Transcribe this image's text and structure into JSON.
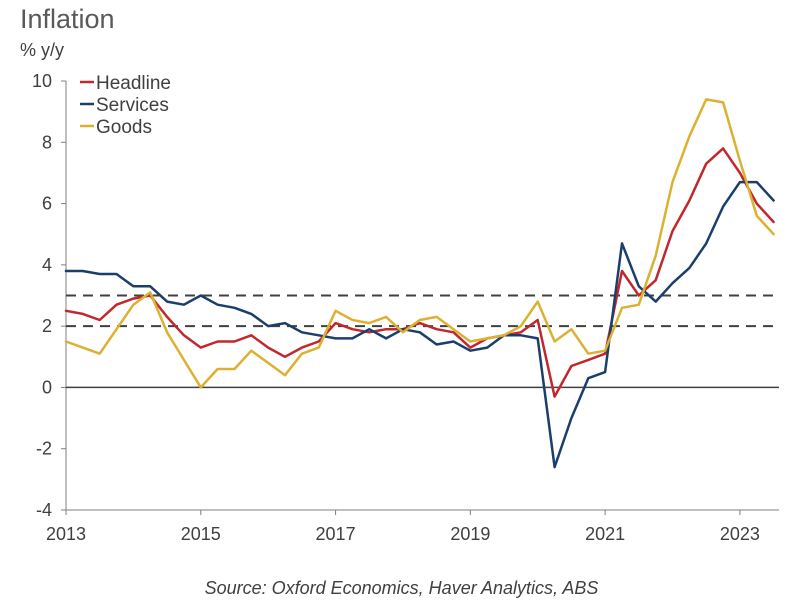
{
  "title": "Inflation",
  "unit_label": "% y/y",
  "source": "Source: Oxford Economics, Haver Analytics, ABS",
  "chart_data": {
    "type": "line",
    "title": "Inflation",
    "ylabel": "% y/y",
    "xlim": [
      2013.0,
      2023.58
    ],
    "ylim": [
      -4,
      10
    ],
    "yticks": [
      -4,
      -2,
      0,
      2,
      4,
      6,
      8,
      10
    ],
    "xticks": [
      2013,
      2015,
      2017,
      2019,
      2021,
      2023
    ],
    "reference_lines": [
      {
        "y": 2,
        "style": "dashed",
        "color": "#404040"
      },
      {
        "y": 3,
        "style": "dashed",
        "color": "#404040"
      },
      {
        "y": 0,
        "style": "solid",
        "color": "#404040"
      }
    ],
    "legend_position": "top-left",
    "x": [
      2013.0,
      2013.25,
      2013.5,
      2013.75,
      2014.0,
      2014.25,
      2014.5,
      2014.75,
      2015.0,
      2015.25,
      2015.5,
      2015.75,
      2016.0,
      2016.25,
      2016.5,
      2016.75,
      2017.0,
      2017.25,
      2017.5,
      2017.75,
      2018.0,
      2018.25,
      2018.5,
      2018.75,
      2019.0,
      2019.25,
      2019.5,
      2019.75,
      2020.0,
      2020.25,
      2020.5,
      2020.75,
      2021.0,
      2021.25,
      2021.5,
      2021.75,
      2022.0,
      2022.25,
      2022.5,
      2022.75,
      2023.0,
      2023.25,
      2023.5
    ],
    "series": [
      {
        "name": "Headline",
        "color": "#c0282e",
        "values": [
          2.5,
          2.4,
          2.2,
          2.7,
          2.9,
          3.0,
          2.3,
          1.7,
          1.3,
          1.5,
          1.5,
          1.7,
          1.3,
          1.0,
          1.3,
          1.5,
          2.1,
          1.9,
          1.8,
          1.9,
          1.9,
          2.1,
          1.9,
          1.8,
          1.3,
          1.6,
          1.7,
          1.8,
          2.2,
          -0.3,
          0.7,
          0.9,
          1.1,
          3.8,
          3.0,
          3.5,
          5.1,
          6.1,
          7.3,
          7.8,
          7.0,
          6.0,
          5.4
        ]
      },
      {
        "name": "Services",
        "color": "#1b3f6b",
        "values": [
          3.8,
          3.8,
          3.7,
          3.7,
          3.3,
          3.3,
          2.8,
          2.7,
          3.0,
          2.7,
          2.6,
          2.4,
          2.0,
          2.1,
          1.8,
          1.7,
          1.6,
          1.6,
          1.9,
          1.6,
          1.9,
          1.8,
          1.4,
          1.5,
          1.2,
          1.3,
          1.7,
          1.7,
          1.6,
          -2.6,
          -1.0,
          0.3,
          0.5,
          4.7,
          3.3,
          2.8,
          3.4,
          3.9,
          4.7,
          5.9,
          6.7,
          6.7,
          6.1
        ]
      },
      {
        "name": "Goods",
        "color": "#dcb132",
        "values": [
          1.5,
          1.3,
          1.1,
          1.9,
          2.7,
          3.1,
          1.8,
          0.9,
          0.0,
          0.6,
          0.6,
          1.2,
          0.8,
          0.4,
          1.1,
          1.3,
          2.5,
          2.2,
          2.1,
          2.3,
          1.8,
          2.2,
          2.3,
          1.9,
          1.5,
          1.6,
          1.7,
          2.0,
          2.8,
          1.5,
          1.9,
          1.1,
          1.2,
          2.6,
          2.7,
          4.3,
          6.7,
          8.2,
          9.4,
          9.3,
          7.4,
          5.6,
          5.0
        ]
      }
    ]
  }
}
